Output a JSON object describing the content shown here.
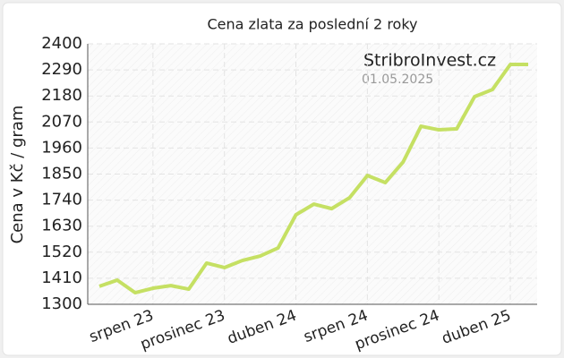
{
  "chart_data": {
    "type": "line",
    "title": "Cena zlata za poslední 2 roky",
    "y_label": "Cena v Kč / gram",
    "annotations": [
      "StribroInvest.cz",
      "01.05.2025"
    ],
    "categories": [
      null,
      null,
      null,
      "srpen 23",
      null,
      null,
      null,
      "prosinec 23",
      null,
      null,
      null,
      "duben 24",
      null,
      null,
      null,
      "srpen 24",
      null,
      null,
      null,
      "prosinec 24",
      null,
      null,
      null,
      "duben 25",
      null
    ],
    "series": [
      {
        "color": "#c5e063",
        "values": [
          1376,
          1402,
          1349,
          1368,
          1379,
          1364,
          1474,
          1455,
          1485,
          1504,
          1538,
          1678,
          1723,
          1704,
          1750,
          1844,
          1814,
          1901,
          2052,
          2037,
          2041,
          2177,
          2207,
          2313,
          2313
        ]
      }
    ],
    "ylim": [
      1300,
      2400
    ],
    "yticks": [
      1300,
      1410,
      1520,
      1630,
      1740,
      1850,
      1960,
      2070,
      2180,
      2290,
      2400
    ],
    "grid": true
  }
}
